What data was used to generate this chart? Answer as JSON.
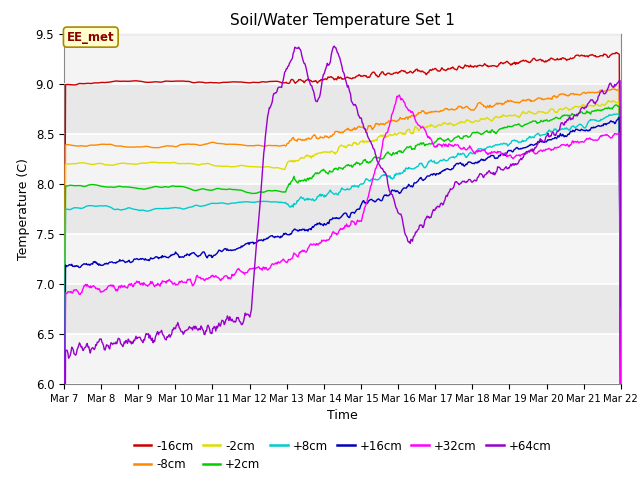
{
  "title": "Soil/Water Temperature Set 1",
  "xlabel": "Time",
  "ylabel": "Temperature (C)",
  "ylim": [
    6.0,
    9.5
  ],
  "annotation": "EE_met",
  "colors": {
    "-16cm": "#cc0000",
    "-8cm": "#ff8800",
    "-2cm": "#dddd00",
    "+2cm": "#00cc00",
    "+8cm": "#00cccc",
    "+16cm": "#0000bb",
    "+32cm": "#ff00ff",
    "+64cm": "#9900cc"
  },
  "n_points": 720,
  "x_start_day": 7,
  "x_end_day": 22,
  "x_ticks": [
    7,
    8,
    9,
    10,
    11,
    12,
    13,
    14,
    15,
    16,
    17,
    18,
    19,
    20,
    21,
    22
  ],
  "legend_row1": [
    "-16cm",
    "-8cm",
    "-2cm",
    "+2cm",
    "+8cm",
    "+16cm"
  ],
  "legend_row2": [
    "+32cm",
    "+64cm"
  ],
  "background_color": "#ffffff",
  "plot_bg_color": "#e8e8e8",
  "stripe_color": "#d4d4d4"
}
